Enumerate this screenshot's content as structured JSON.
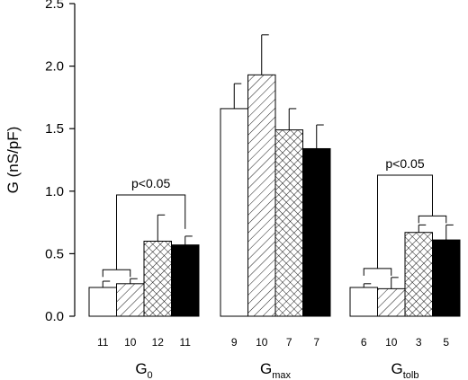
{
  "chart_data": {
    "type": "bar",
    "ylabel": "G (nS/pF)",
    "ylim": [
      0,
      2.5
    ],
    "yticks": [
      "0.0",
      "0.5",
      "1.0",
      "1.5",
      "2.0",
      "2.5"
    ],
    "fill_patterns": [
      "open",
      "diagonal-hatch",
      "cross-hatch",
      "solid"
    ],
    "groups": [
      {
        "label_main": "G",
        "label_sub": "0",
        "values": [
          0.23,
          0.26,
          0.6,
          0.57
        ],
        "errors": [
          0.05,
          0.04,
          0.21,
          0.07
        ],
        "n": [
          "11",
          "10",
          "12",
          "11"
        ]
      },
      {
        "label_main": "G",
        "label_sub": "max",
        "values": [
          1.66,
          1.93,
          1.49,
          1.34
        ],
        "errors": [
          0.2,
          0.32,
          0.17,
          0.19
        ],
        "n": [
          "9",
          "10",
          "7",
          "7"
        ]
      },
      {
        "label_main": "G",
        "label_sub": "tolb",
        "values": [
          0.23,
          0.22,
          0.67,
          0.61
        ],
        "errors": [
          0.03,
          0.09,
          0.06,
          0.12
        ],
        "n": [
          "6",
          "10",
          "3",
          "5"
        ]
      }
    ],
    "annotations": [
      {
        "text": "p<0.05",
        "group": 0
      },
      {
        "text": "p<0.05",
        "group": 2
      }
    ]
  }
}
